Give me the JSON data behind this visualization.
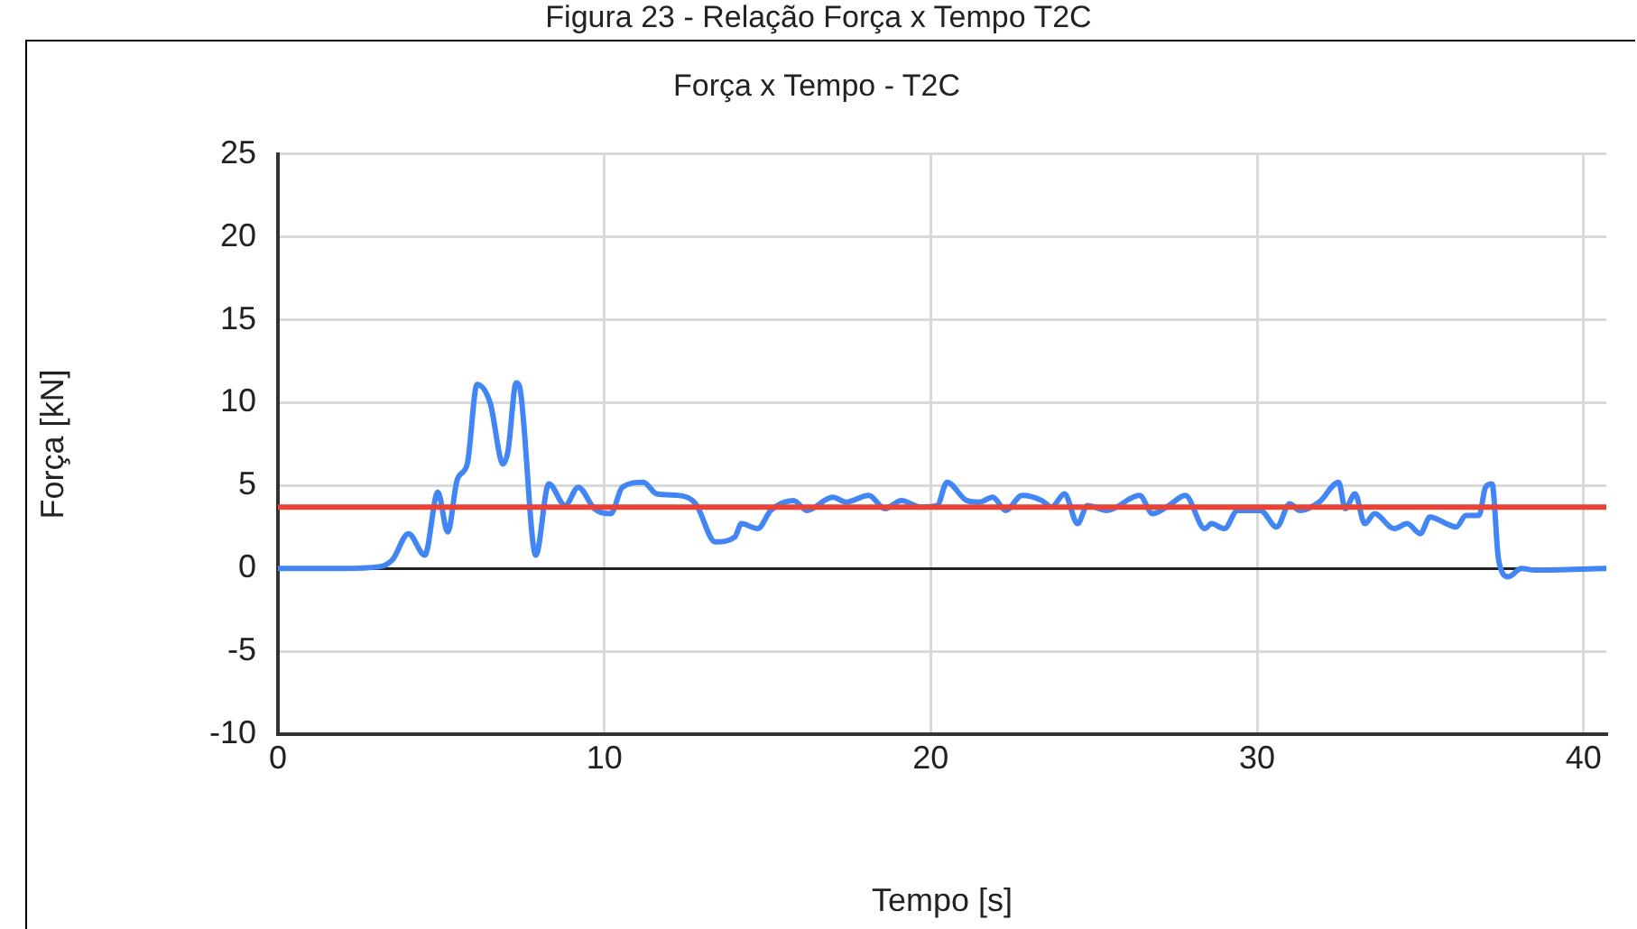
{
  "chart_data": {
    "type": "line",
    "title": "Força x Tempo - T2C",
    "xlabel": "Tempo [s]",
    "ylabel": "Força [kN]",
    "annotations": [
      "Figura 23 - Relação Força x Tempo T2C"
    ],
    "series": [
      {
        "color": "#4285f4",
        "x": [
          0,
          1,
          2,
          3.1,
          3.5,
          4.0,
          4.5,
          4.9,
          5.2,
          5.5,
          5.8,
          6.1,
          6.5,
          6.9,
          7.05,
          7.3,
          7.4,
          7.9,
          8.3,
          8.8,
          9.2,
          9.7,
          10.2,
          10.55,
          11.2,
          11.6,
          12.3,
          12.8,
          13.4,
          14.0,
          14.2,
          14.7,
          15.1,
          15.8,
          16.2,
          17.0,
          17.4,
          18.1,
          18.6,
          19.1,
          19.7,
          20.2,
          20.5,
          21.1,
          21.5,
          21.9,
          22.3,
          22.8,
          23.4,
          23.7,
          24.1,
          24.5,
          24.8,
          25.4,
          26.4,
          26.8,
          27.3,
          27.8,
          28.4,
          28.6,
          29.0,
          29.4,
          30.1,
          30.6,
          31.0,
          31.3,
          31.9,
          32.5,
          32.7,
          33.0,
          33.3,
          33.6,
          34.2,
          34.6,
          35.0,
          35.3,
          35.8,
          36.1,
          36.4,
          36.8,
          37.0,
          37.2,
          37.4,
          37.7,
          38.1,
          38.5,
          40.7
        ],
        "values": [
          0,
          0,
          0,
          0.1,
          0.5,
          2.1,
          0.8,
          4.6,
          2.2,
          5.4,
          6.3,
          11.1,
          10,
          6.3,
          7.1,
          11.2,
          11,
          0.8,
          5.1,
          3.8,
          4.9,
          3.6,
          3.3,
          4.9,
          5.2,
          4.5,
          4.4,
          3.9,
          1.6,
          1.9,
          2.7,
          2.4,
          3.5,
          4.1,
          3.5,
          4.3,
          4.0,
          4.4,
          3.6,
          4.1,
          3.7,
          3.8,
          5.2,
          4.1,
          4.0,
          4.3,
          3.5,
          4.4,
          4.1,
          3.7,
          4.5,
          2.7,
          3.8,
          3.5,
          4.4,
          3.3,
          3.8,
          4.4,
          2.4,
          2.7,
          2.4,
          3.5,
          3.5,
          2.5,
          3.9,
          3.5,
          4.0,
          5.2,
          3.6,
          4.5,
          2.7,
          3.3,
          2.4,
          2.7,
          2.1,
          3.1,
          2.7,
          2.5,
          3.2,
          3.2,
          4.9,
          5.1,
          0.5,
          -0.5,
          0,
          -0.1,
          0
        ]
      }
    ],
    "ref_lines": [
      {
        "axis": "y",
        "value": 3.7,
        "color": "#ea4335"
      }
    ],
    "xlim": [
      0,
      40.7
    ],
    "xticks": [
      0,
      10,
      20,
      30,
      40
    ],
    "ylim": [
      -10,
      25
    ],
    "yticks": [
      -10,
      -5,
      0,
      5,
      10,
      15,
      20,
      25
    ],
    "grid": true,
    "legend": false,
    "marker": "none",
    "line_style": "solid"
  }
}
